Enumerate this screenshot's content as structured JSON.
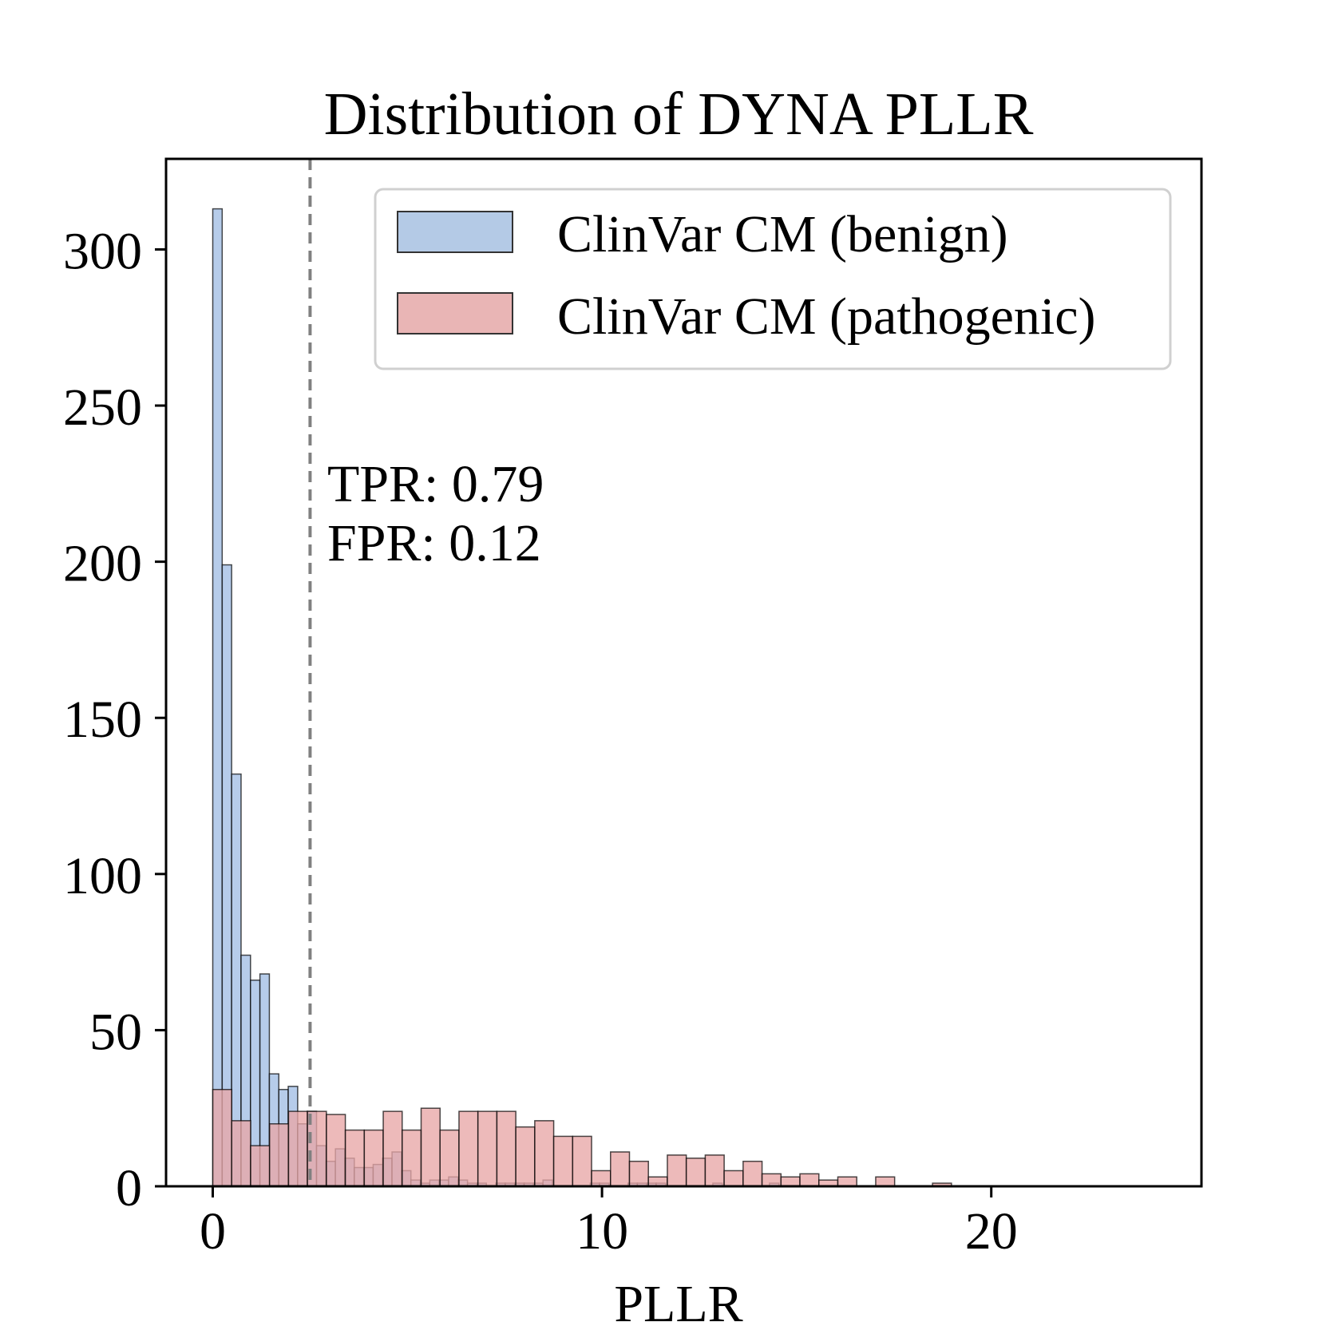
{
  "chart_data": {
    "type": "bar",
    "title": "Distribution of DYNA PLLR",
    "xlabel": "PLLR",
    "ylabel": "",
    "xlim": [
      -1.2,
      25.4
    ],
    "ylim": [
      0,
      329
    ],
    "xticks": [
      0,
      10,
      20
    ],
    "yticks": [
      0,
      50,
      100,
      150,
      200,
      250,
      300
    ],
    "threshold": 2.5,
    "annotation": [
      "TPR: 0.79",
      "FPR: 0.12"
    ],
    "legend_position": "top-right",
    "series": [
      {
        "name": "ClinVar CM (benign)",
        "color": "#aec7e8",
        "bin_width": 0.2424,
        "bin_start": 0.0,
        "counts": [
          313,
          199,
          132,
          74,
          66,
          68,
          36,
          31,
          32,
          20,
          24,
          13,
          8,
          12,
          9,
          6,
          6,
          7,
          9,
          11,
          5,
          2,
          1,
          2,
          2,
          3,
          2,
          1,
          1,
          0,
          1,
          1,
          1,
          1,
          1,
          2,
          0,
          0,
          0,
          0,
          1,
          1,
          0,
          0,
          1,
          1,
          1,
          1,
          0,
          0,
          0,
          0,
          0,
          1,
          0,
          0,
          0,
          0,
          0,
          1
        ]
      },
      {
        "name": "ClinVar CM (pathogenic)",
        "color": "#e8a6a6",
        "bin_width": 0.4866,
        "bin_start": 0.0,
        "counts": [
          31,
          21,
          13,
          20,
          24,
          24,
          23,
          18,
          18,
          24,
          18,
          25,
          18,
          24,
          24,
          24,
          19,
          21,
          16,
          16,
          5,
          11,
          8,
          3,
          10,
          9,
          10,
          5,
          8,
          4,
          3,
          4,
          2,
          3,
          0,
          3,
          0,
          0,
          1,
          0,
          0,
          0,
          0,
          0,
          0,
          0,
          0,
          0,
          0,
          0,
          0,
          0,
          0,
          0,
          0,
          0,
          0,
          0,
          0,
          0
        ]
      }
    ]
  }
}
